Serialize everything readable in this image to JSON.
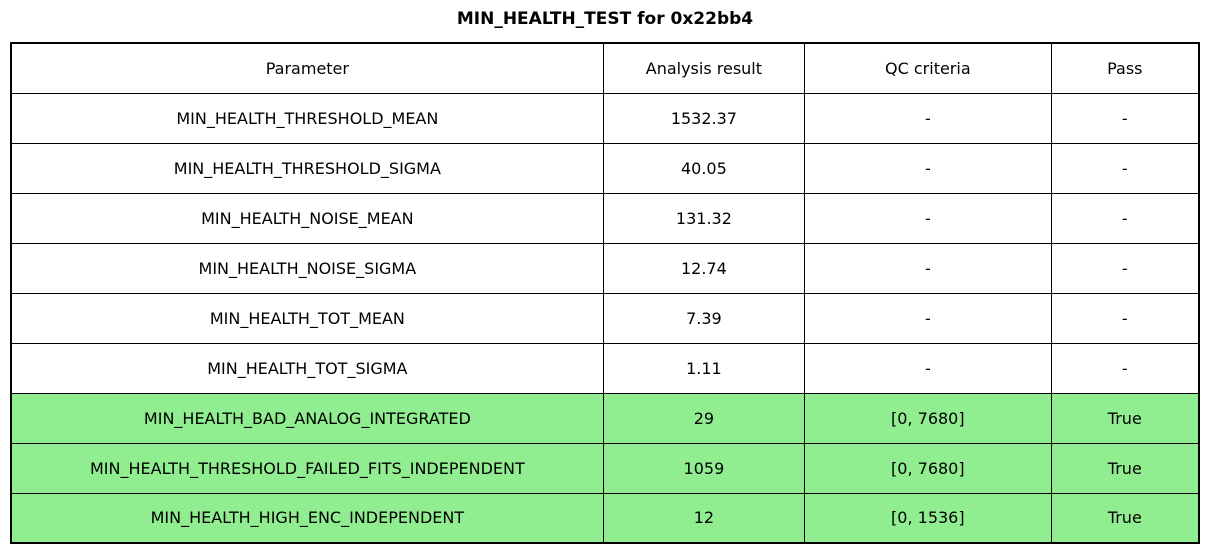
{
  "title": "MIN_HEALTH_TEST for 0x22bb4",
  "colors": {
    "pass_green": "#90ee90",
    "border": "#000000",
    "background": "#ffffff",
    "text": "#000000"
  },
  "chart_data": {
    "type": "table",
    "title": "MIN_HEALTH_TEST for 0x22bb4",
    "columns": [
      "Parameter",
      "Analysis result",
      "QC criteria",
      "Pass"
    ],
    "rows": [
      {
        "parameter": "MIN_HEALTH_THRESHOLD_MEAN",
        "result": "1532.37",
        "qc_criteria": "-",
        "pass": "-",
        "highlighted": false
      },
      {
        "parameter": "MIN_HEALTH_THRESHOLD_SIGMA",
        "result": "40.05",
        "qc_criteria": "-",
        "pass": "-",
        "highlighted": false
      },
      {
        "parameter": "MIN_HEALTH_NOISE_MEAN",
        "result": "131.32",
        "qc_criteria": "-",
        "pass": "-",
        "highlighted": false
      },
      {
        "parameter": "MIN_HEALTH_NOISE_SIGMA",
        "result": "12.74",
        "qc_criteria": "-",
        "pass": "-",
        "highlighted": false
      },
      {
        "parameter": "MIN_HEALTH_TOT_MEAN",
        "result": "7.39",
        "qc_criteria": "-",
        "pass": "-",
        "highlighted": false
      },
      {
        "parameter": "MIN_HEALTH_TOT_SIGMA",
        "result": "1.11",
        "qc_criteria": "-",
        "pass": "-",
        "highlighted": false
      },
      {
        "parameter": "MIN_HEALTH_BAD_ANALOG_INTEGRATED",
        "result": "29",
        "qc_criteria": "[0, 7680]",
        "pass": "True",
        "highlighted": true
      },
      {
        "parameter": "MIN_HEALTH_THRESHOLD_FAILED_FITS_INDEPENDENT",
        "result": "1059",
        "qc_criteria": "[0, 7680]",
        "pass": "True",
        "highlighted": true
      },
      {
        "parameter": "MIN_HEALTH_HIGH_ENC_INDEPENDENT",
        "result": "12",
        "qc_criteria": "[0, 1536]",
        "pass": "True",
        "highlighted": true
      }
    ]
  }
}
